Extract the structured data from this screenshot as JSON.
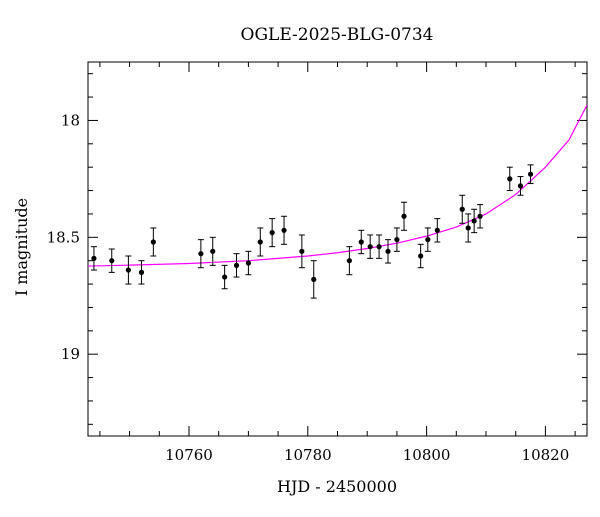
{
  "chart_data": {
    "type": "scatter",
    "title": "OGLE-2025-BLG-0734",
    "xlabel": "HJD - 2450000",
    "ylabel": "I magnitude",
    "xlim": [
      10743,
      10827
    ],
    "ylim": [
      19.35,
      17.75
    ],
    "y_inverted": true,
    "xticks": [
      10760,
      10780,
      10800,
      10820
    ],
    "xtick_labels": [
      "10760",
      "10780",
      "10800",
      "10820"
    ],
    "yticks": [
      18,
      18.5,
      19
    ],
    "ytick_labels": [
      "18",
      "18.5",
      "19"
    ],
    "x_minor_step": 5,
    "y_minor_step": 0.1,
    "grid": false,
    "legend": "none",
    "colors": {
      "points": "#000000",
      "model": "#ff00ff",
      "axes": "#000000"
    },
    "series": [
      {
        "kind": "points_with_errorbars",
        "points": [
          {
            "x": 10744.0,
            "y": 18.59,
            "err": 0.05
          },
          {
            "x": 10747.0,
            "y": 18.6,
            "err": 0.05
          },
          {
            "x": 10749.8,
            "y": 18.64,
            "err": 0.06
          },
          {
            "x": 10752.0,
            "y": 18.65,
            "err": 0.05
          },
          {
            "x": 10754.0,
            "y": 18.52,
            "err": 0.06
          },
          {
            "x": 10762.0,
            "y": 18.57,
            "err": 0.06
          },
          {
            "x": 10764.0,
            "y": 18.56,
            "err": 0.06
          },
          {
            "x": 10766.0,
            "y": 18.67,
            "err": 0.05
          },
          {
            "x": 10768.0,
            "y": 18.62,
            "err": 0.05
          },
          {
            "x": 10770.0,
            "y": 18.61,
            "err": 0.05
          },
          {
            "x": 10772.0,
            "y": 18.52,
            "err": 0.06
          },
          {
            "x": 10774.0,
            "y": 18.48,
            "err": 0.06
          },
          {
            "x": 10776.0,
            "y": 18.47,
            "err": 0.06
          },
          {
            "x": 10779.0,
            "y": 18.56,
            "err": 0.07
          },
          {
            "x": 10781.0,
            "y": 18.68,
            "err": 0.08
          },
          {
            "x": 10787.0,
            "y": 18.6,
            "err": 0.06
          },
          {
            "x": 10789.0,
            "y": 18.52,
            "err": 0.05
          },
          {
            "x": 10790.5,
            "y": 18.54,
            "err": 0.05
          },
          {
            "x": 10792.0,
            "y": 18.54,
            "err": 0.05
          },
          {
            "x": 10793.5,
            "y": 18.56,
            "err": 0.05
          },
          {
            "x": 10795.0,
            "y": 18.51,
            "err": 0.05
          },
          {
            "x": 10796.2,
            "y": 18.41,
            "err": 0.06
          },
          {
            "x": 10799.0,
            "y": 18.58,
            "err": 0.05
          },
          {
            "x": 10800.2,
            "y": 18.51,
            "err": 0.05
          },
          {
            "x": 10801.8,
            "y": 18.47,
            "err": 0.05
          },
          {
            "x": 10806.0,
            "y": 18.38,
            "err": 0.06
          },
          {
            "x": 10807.0,
            "y": 18.46,
            "err": 0.06
          },
          {
            "x": 10808.0,
            "y": 18.43,
            "err": 0.05
          },
          {
            "x": 10809.0,
            "y": 18.41,
            "err": 0.05
          },
          {
            "x": 10814.0,
            "y": 18.25,
            "err": 0.05
          },
          {
            "x": 10815.8,
            "y": 18.28,
            "err": 0.04
          },
          {
            "x": 10817.5,
            "y": 18.23,
            "err": 0.04
          }
        ]
      },
      {
        "kind": "model_curve",
        "points": [
          {
            "x": 10743,
            "y": 18.623
          },
          {
            "x": 10750,
            "y": 18.619
          },
          {
            "x": 10760,
            "y": 18.612
          },
          {
            "x": 10770,
            "y": 18.6
          },
          {
            "x": 10780,
            "y": 18.58
          },
          {
            "x": 10785,
            "y": 18.566
          },
          {
            "x": 10790,
            "y": 18.548
          },
          {
            "x": 10795,
            "y": 18.525
          },
          {
            "x": 10800,
            "y": 18.495
          },
          {
            "x": 10805,
            "y": 18.456
          },
          {
            "x": 10810,
            "y": 18.4
          },
          {
            "x": 10815,
            "y": 18.317
          },
          {
            "x": 10820,
            "y": 18.2
          },
          {
            "x": 10824,
            "y": 18.082
          },
          {
            "x": 10827,
            "y": 17.934
          }
        ]
      }
    ]
  }
}
